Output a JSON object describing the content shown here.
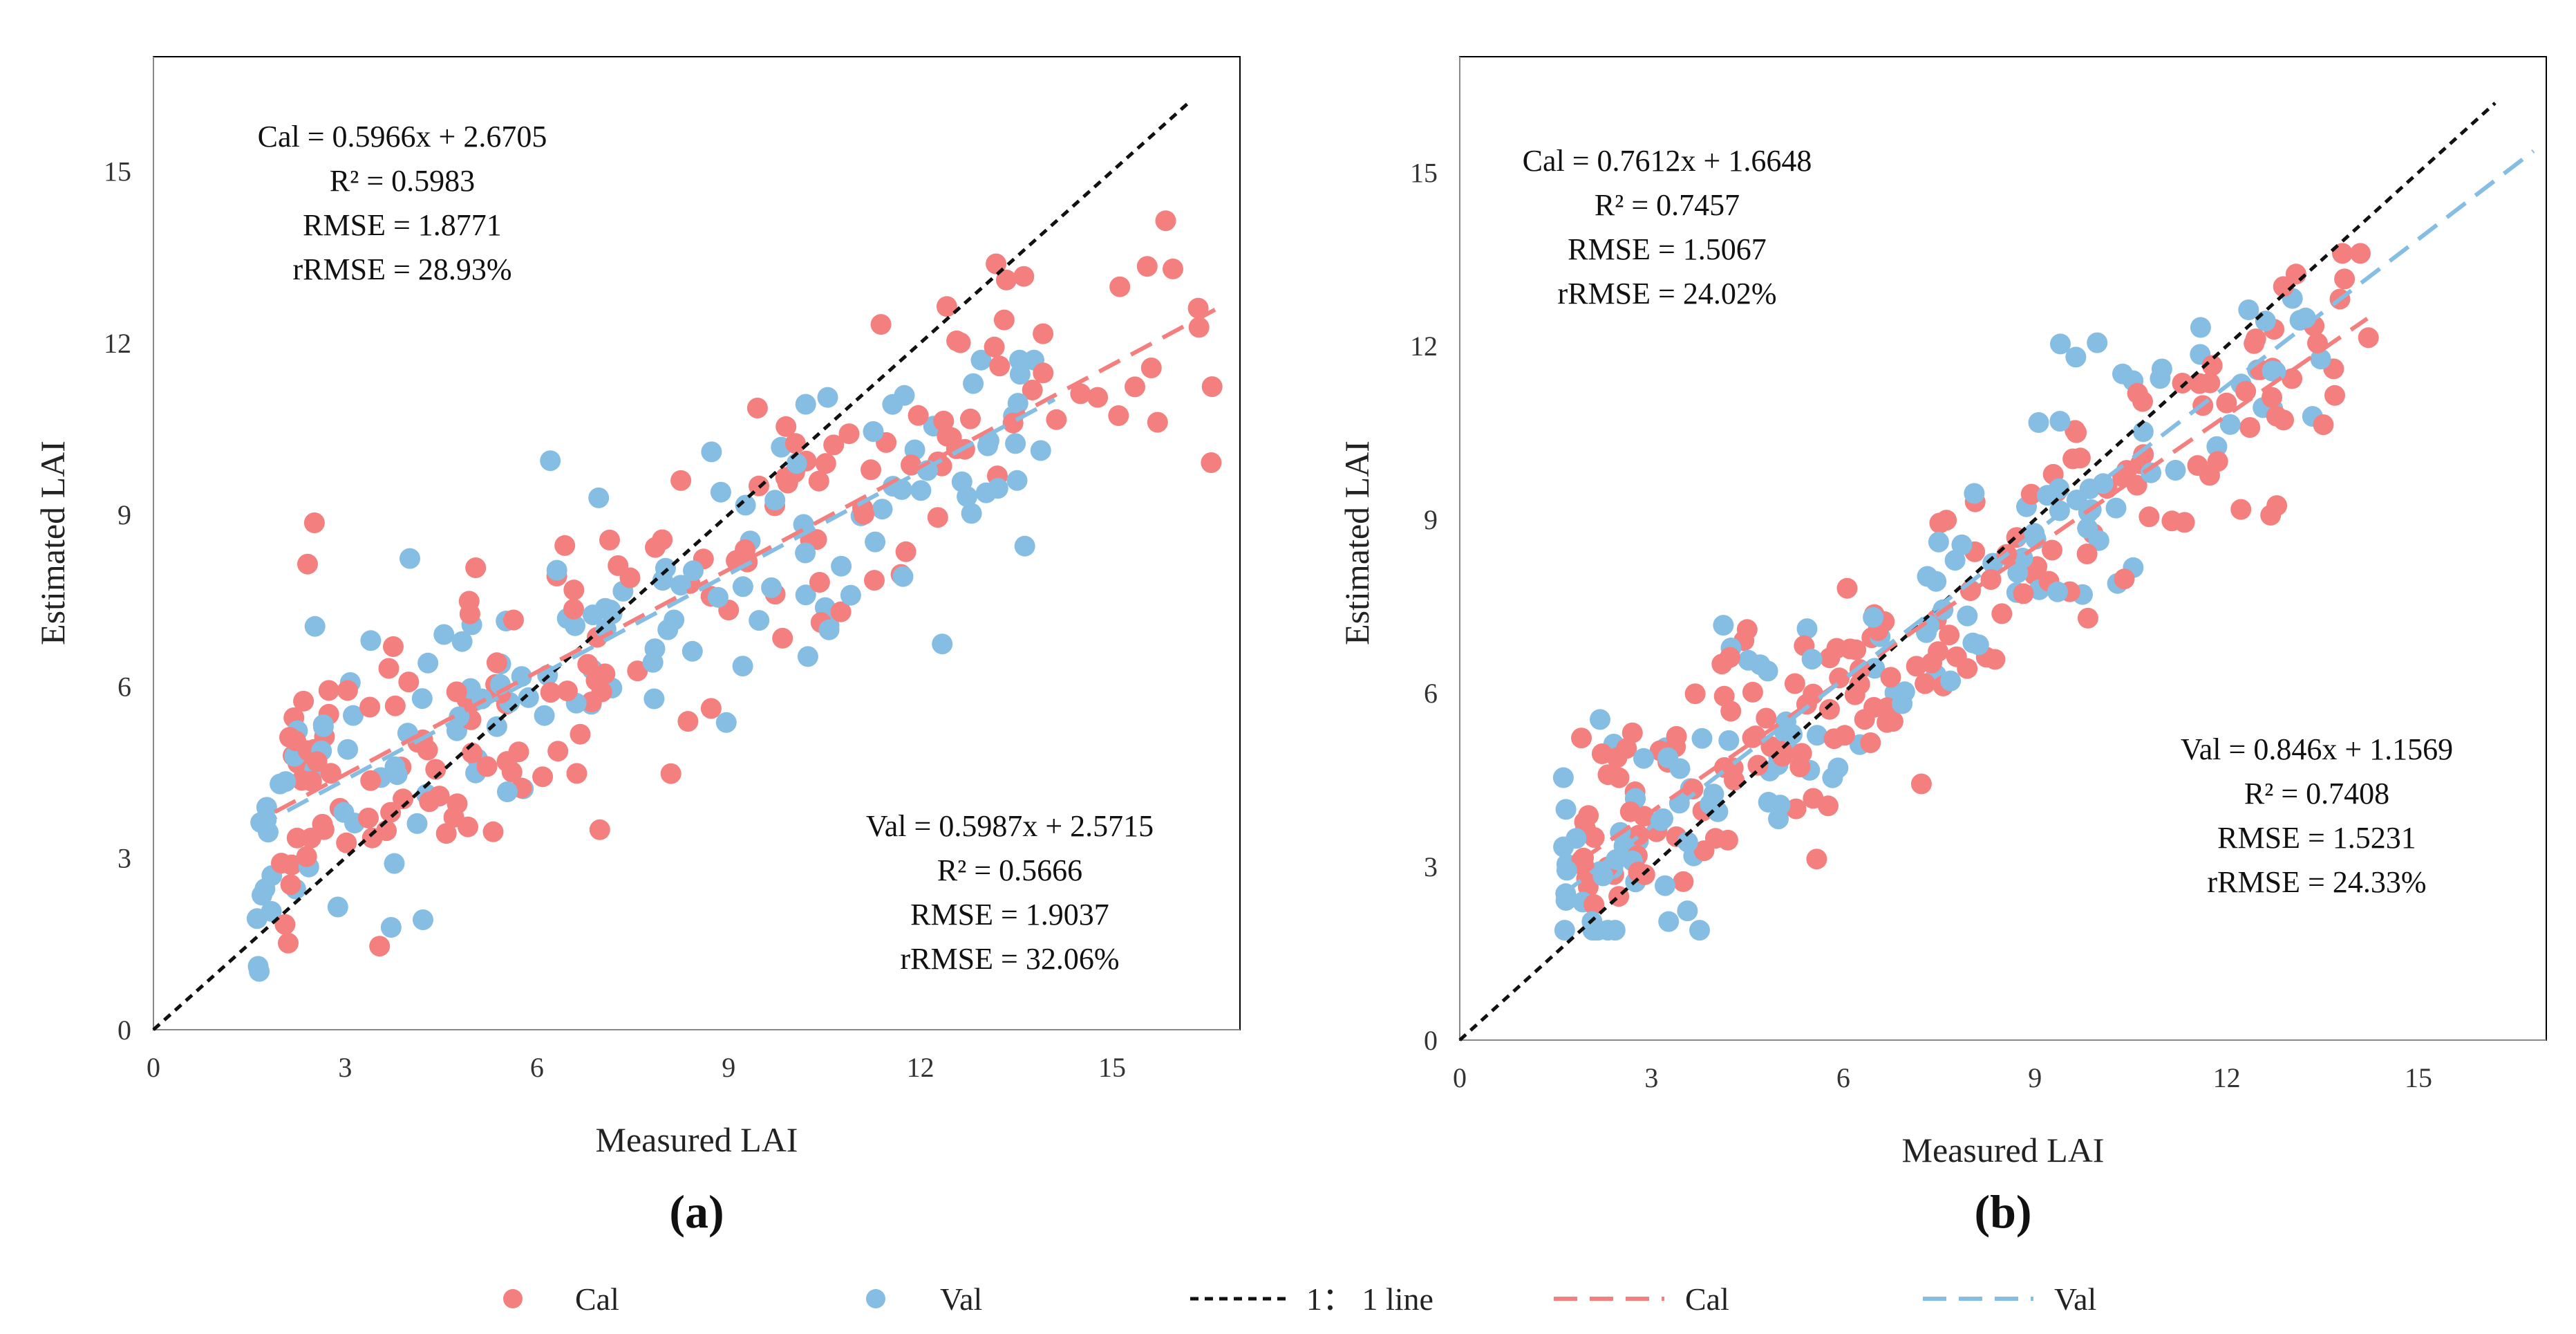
{
  "colors": {
    "cal": "#F47F7F",
    "val": "#86BDE3",
    "one_to_one": "#111111",
    "frame": "#000000"
  },
  "legend": {
    "items": [
      {
        "key": "cal_points",
        "label": "Cal",
        "kind": "marker"
      },
      {
        "key": "val_points",
        "label": "Val",
        "kind": "marker"
      },
      {
        "key": "one_to_one",
        "label": "1： 1 line",
        "kind": "line"
      },
      {
        "key": "cal_fit",
        "label": "Cal",
        "kind": "line"
      },
      {
        "key": "val_fit",
        "label": "Val",
        "kind": "line"
      }
    ]
  },
  "chart_data": [
    {
      "type": "scatter",
      "panel_label": "(a)",
      "xlabel": "Measured LAI",
      "ylabel": "Estimated LAI",
      "xlim": [
        0,
        17
      ],
      "ylim": [
        0,
        17
      ],
      "xticks": [
        0,
        3,
        6,
        9,
        12,
        15
      ],
      "yticks": [
        0,
        3,
        6,
        9,
        12,
        15
      ],
      "one_to_one_range": [
        0,
        16.2
      ],
      "cal": {
        "equation": "Cal = 0.5966x + 2.6705",
        "r2": "R² = 0.5983",
        "rmse": "RMSE = 1.8771",
        "rrmse": "rRMSE = 28.93%",
        "slope": 0.5966,
        "intercept": 2.6705,
        "fit_range": [
          1.9,
          16.7
        ],
        "seed": 11,
        "n": 175,
        "x_range": [
          2.0,
          16.7
        ],
        "noise": 1.55,
        "y_min": 0.3,
        "y_max": 14.6
      },
      "val": {
        "equation": "Val = 0.5987x + 2.5715",
        "r2": "R² = 0.5666",
        "rmse": "RMSE = 1.9037",
        "rrmse": "rRMSE = 32.06%",
        "slope": 0.5987,
        "intercept": 2.5715,
        "fit_range": [
          1.6,
          14.1
        ],
        "seed": 29,
        "n": 145,
        "x_range": [
          1.6,
          14.1
        ],
        "noise": 1.45,
        "y_min": 1.0,
        "y_max": 11.7
      }
    },
    {
      "type": "scatter",
      "panel_label": "(b)",
      "xlabel": "Measured LAI",
      "ylabel": "Estimated LAI",
      "xlim": [
        0,
        17
      ],
      "ylim": [
        0,
        17
      ],
      "xticks": [
        0,
        3,
        6,
        9,
        12,
        15
      ],
      "yticks": [
        0,
        3,
        6,
        9,
        12,
        15
      ],
      "one_to_one_range": [
        0,
        16.2
      ],
      "cal": {
        "equation": "Cal = 0.7612x + 1.6648",
        "r2": "R² = 0.7457",
        "rmse": "RMSE = 1.5067",
        "rrmse": "rRMSE = 24.02%",
        "slope": 0.7612,
        "intercept": 1.6648,
        "fit_range": [
          1.9,
          14.2
        ],
        "seed": 47,
        "n": 175,
        "x_range": [
          1.9,
          14.3
        ],
        "noise": 1.2,
        "y_min": 1.6,
        "y_max": 13.6
      },
      "val": {
        "equation": "Val = 0.846x + 1.1569",
        "r2": "R² = 0.7408",
        "rmse": "RMSE = 1.5231",
        "rrmse": "rRMSE = 24.33%",
        "slope": 0.846,
        "intercept": 1.1569,
        "fit_range": [
          1.6,
          16.8
        ],
        "seed": 83,
        "n": 145,
        "x_range": [
          1.6,
          13.6
        ],
        "noise": 1.2,
        "y_min": 1.9,
        "y_max": 12.9
      }
    }
  ]
}
